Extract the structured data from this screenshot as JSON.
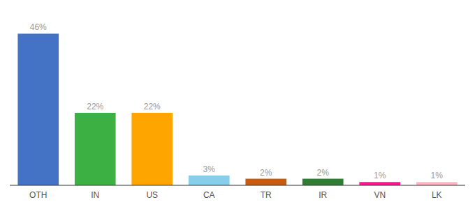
{
  "chart_data": {
    "type": "bar",
    "categories": [
      "OTH",
      "IN",
      "US",
      "CA",
      "TR",
      "IR",
      "VN",
      "LK"
    ],
    "values": [
      46,
      22,
      22,
      3,
      2,
      2,
      1,
      1
    ],
    "value_labels": [
      "46%",
      "22%",
      "22%",
      "3%",
      "2%",
      "2%",
      "1%",
      "1%"
    ],
    "colors": [
      "#4472C4",
      "#3CB043",
      "#FFA500",
      "#87CEEB",
      "#C65C10",
      "#2E7D32",
      "#FF1493",
      "#FFB6C1"
    ],
    "ylim": [
      0,
      52
    ],
    "data_labels": true,
    "tick_labels": "x",
    "grid": false
  }
}
